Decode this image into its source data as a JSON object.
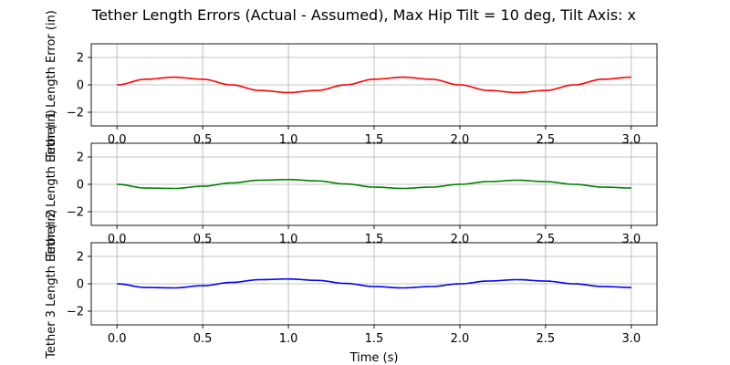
{
  "chart_data": {
    "type": "line",
    "title": "Tether Length Errors (Actual - Assumed), Max Hip Tilt = 10 deg, Tilt Axis: x",
    "xlabel": "Time (s)",
    "grid": true,
    "xlim": [
      -0.15,
      3.15
    ],
    "x_ticks": [
      "0.0",
      "0.5",
      "1.0",
      "1.5",
      "2.0",
      "2.5",
      "3.0"
    ],
    "x_tick_values": [
      0,
      0.5,
      1.0,
      1.5,
      2.0,
      2.5,
      3.0
    ],
    "panels": [
      {
        "ylabel": "Tether 1 Length Error (in)",
        "ylim": [
          -3,
          3
        ],
        "y_ticks": [
          "2",
          "0",
          "−2"
        ],
        "y_tick_values": [
          2,
          0,
          -2
        ],
        "color": "#ff0000",
        "series": [
          {
            "x": [
              0.0,
              0.167,
              0.333,
              0.5,
              0.667,
              0.833,
              1.0,
              1.167,
              1.333,
              1.5,
              1.667,
              1.833,
              2.0,
              2.167,
              2.333,
              2.5,
              2.667,
              2.833,
              3.0
            ],
            "values": [
              0.0,
              0.41,
              0.56,
              0.41,
              0.0,
              -0.41,
              -0.56,
              -0.41,
              0.0,
              0.41,
              0.56,
              0.41,
              0.0,
              -0.41,
              -0.56,
              -0.41,
              0.0,
              0.41,
              0.56
            ]
          }
        ]
      },
      {
        "ylabel": "Tether 2 Length Error (in)",
        "ylim": [
          -3,
          3
        ],
        "y_ticks": [
          "2",
          "0",
          "−2"
        ],
        "y_tick_values": [
          2,
          0,
          -2
        ],
        "color": "#008000",
        "series": [
          {
            "x": [
              0.0,
              0.167,
              0.333,
              0.5,
              0.667,
              0.833,
              1.0,
              1.167,
              1.333,
              1.5,
              1.667,
              1.833,
              2.0,
              2.167,
              2.333,
              2.5,
              2.667,
              2.833,
              3.0
            ],
            "values": [
              0.0,
              -0.27,
              -0.3,
              -0.14,
              0.1,
              0.3,
              0.35,
              0.25,
              0.03,
              -0.2,
              -0.3,
              -0.2,
              0.0,
              0.2,
              0.3,
              0.2,
              0.0,
              -0.2,
              -0.27
            ]
          }
        ]
      },
      {
        "ylabel": "Tether 3 Length Error (in)",
        "ylim": [
          -3,
          3
        ],
        "y_ticks": [
          "2",
          "0",
          "−2"
        ],
        "y_tick_values": [
          2,
          0,
          -2
        ],
        "color": "#0000ff",
        "series": [
          {
            "x": [
              0.0,
              0.167,
              0.333,
              0.5,
              0.667,
              0.833,
              1.0,
              1.167,
              1.333,
              1.5,
              1.667,
              1.833,
              2.0,
              2.167,
              2.333,
              2.5,
              2.667,
              2.833,
              3.0
            ],
            "values": [
              0.0,
              -0.27,
              -0.3,
              -0.14,
              0.1,
              0.3,
              0.35,
              0.25,
              0.03,
              -0.2,
              -0.3,
              -0.2,
              0.0,
              0.2,
              0.3,
              0.2,
              0.0,
              -0.2,
              -0.27
            ]
          }
        ]
      }
    ]
  }
}
